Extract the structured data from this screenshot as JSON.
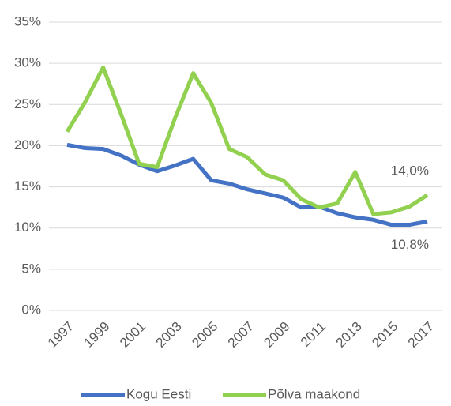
{
  "chart_data": {
    "type": "line",
    "x": [
      1997,
      1998,
      1999,
      2000,
      2001,
      2002,
      2003,
      2004,
      2005,
      2006,
      2007,
      2008,
      2009,
      2010,
      2011,
      2012,
      2013,
      2014,
      2015,
      2016,
      2017
    ],
    "xlim": [
      1997,
      2017
    ],
    "xticks": [
      1997,
      1999,
      2001,
      2003,
      2005,
      2007,
      2009,
      2011,
      2013,
      2015,
      2017
    ],
    "ylim": [
      0,
      35
    ],
    "yticks": [
      {
        "value": 0,
        "label": "0%"
      },
      {
        "value": 5,
        "label": "5%"
      },
      {
        "value": 10,
        "label": "10%"
      },
      {
        "value": 15,
        "label": "15%"
      },
      {
        "value": 20,
        "label": "20%"
      },
      {
        "value": 25,
        "label": "25%"
      },
      {
        "value": 30,
        "label": "30%"
      },
      {
        "value": 35,
        "label": "35%"
      }
    ],
    "grid": true,
    "legend": "bottom",
    "series": [
      {
        "name": "Kogu Eesti",
        "color": "#4472c4",
        "values": [
          20.1,
          19.7,
          19.6,
          18.8,
          17.7,
          16.9,
          17.6,
          18.4,
          15.8,
          15.4,
          14.7,
          14.2,
          13.7,
          12.5,
          12.6,
          11.8,
          11.3,
          11.0,
          10.4,
          10.4,
          10.8
        ],
        "value_labels": [
          null,
          null,
          null,
          null,
          null,
          null,
          null,
          null,
          null,
          null,
          null,
          null,
          null,
          null,
          null,
          null,
          null,
          null,
          null,
          null,
          "10,8%"
        ]
      },
      {
        "name": "Põlva maakond",
        "color": "#92d050",
        "values": [
          21.7,
          25.3,
          29.5,
          23.8,
          17.8,
          17.4,
          23.4,
          28.8,
          25.2,
          19.6,
          18.6,
          16.5,
          15.8,
          13.5,
          12.5,
          13.0,
          16.8,
          11.7,
          11.9,
          12.6,
          14.0
        ],
        "value_labels": [
          null,
          null,
          null,
          null,
          null,
          null,
          null,
          null,
          null,
          null,
          null,
          null,
          null,
          null,
          null,
          null,
          null,
          null,
          null,
          null,
          "14,0%"
        ]
      }
    ]
  }
}
